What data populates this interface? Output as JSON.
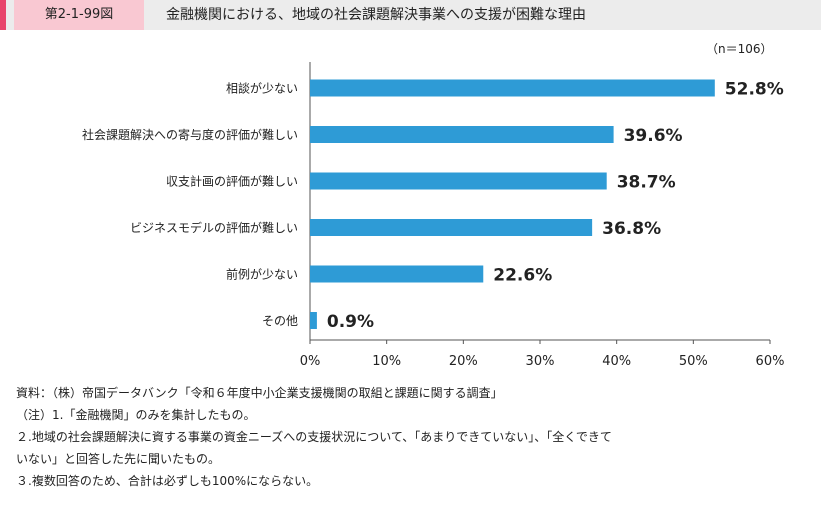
{
  "header": {
    "figure_id": "第2-1-99図",
    "title": "金融機関における、地域の社会課題解決事業への支援が困難な理由"
  },
  "sample_note": "（n＝106）",
  "chart_data": {
    "type": "bar",
    "orientation": "horizontal",
    "categories": [
      "相談が少ない",
      "社会課題解決への寄与度の評価が難しい",
      "収支計画の評価が難しい",
      "ビジネスモデルの評価が難しい",
      "前例が少ない",
      "その他"
    ],
    "values": [
      52.8,
      39.6,
      38.7,
      36.8,
      22.6,
      0.9
    ],
    "value_labels": [
      "52.8%",
      "39.6%",
      "38.7%",
      "36.8%",
      "22.6%",
      "0.9%"
    ],
    "x_ticks": [
      "0%",
      "10%",
      "20%",
      "30%",
      "40%",
      "50%",
      "60%"
    ],
    "xlim": [
      0,
      60
    ],
    "bar_color": "#2e9bd6",
    "grid": false
  },
  "notes": [
    "資料：（株）帝国データバンク「令和６年度中小企業支援機関の取組と課題に関する調査」",
    "（注）1.「金融機関」のみを集計したもの。",
    "２.地域の社会課題解決に資する事業の資金ニーズへの支援状況について、「あまりできていない」、「全くできて",
    "いない」と回答した先に聞いたもの。",
    "３.複数回答のため、合計は必ずしも100%にならない。"
  ]
}
